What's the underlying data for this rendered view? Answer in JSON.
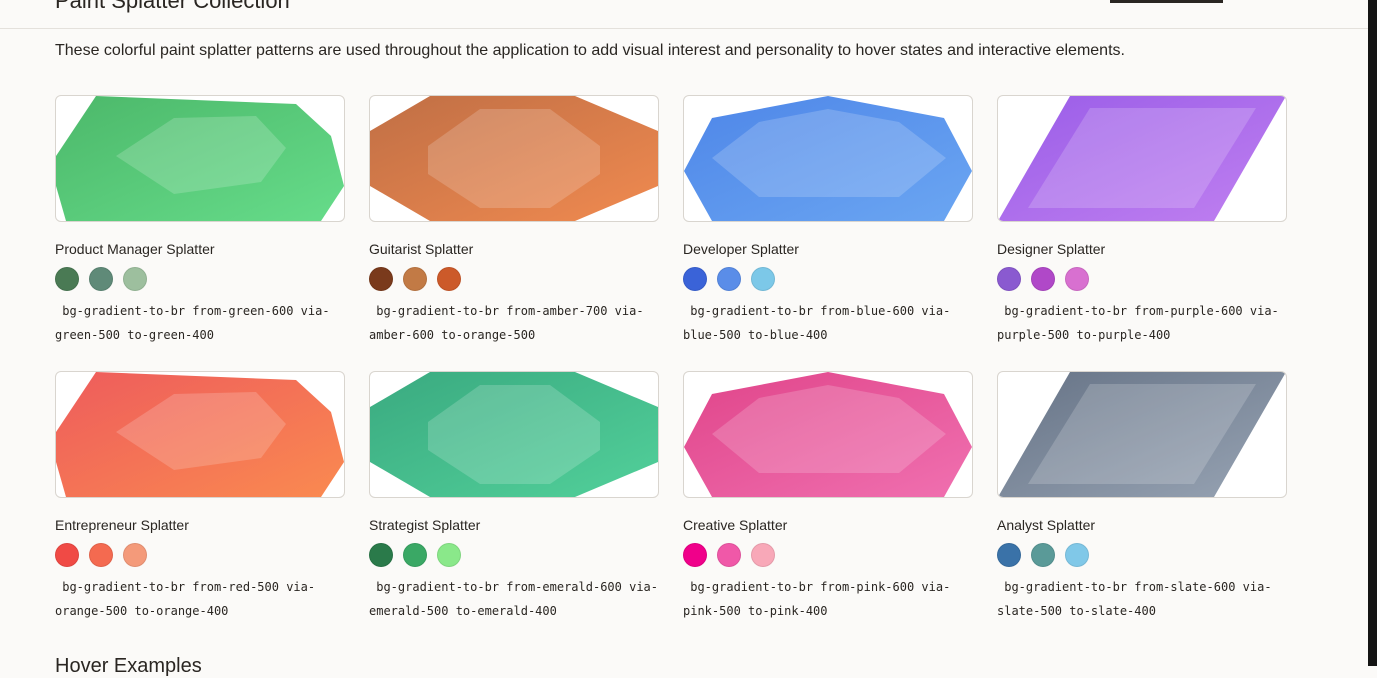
{
  "header": {
    "title": "Paint Splatter Collection",
    "active_tab": ""
  },
  "intro": "These colorful paint splatter patterns are used throughout the application to add visual interest and personality to hover states and interactive elements.",
  "splatters": [
    {
      "name": "Product Manager Splatter",
      "shape": "irregular",
      "colors": [
        "#4a7a54",
        "#5f8a78",
        "#9dbf9e"
      ],
      "grad": [
        "#4cb86a",
        "#66dc8a"
      ],
      "classes": " bg-gradient-to-br from-green-600 via-green-500 to-green-400"
    },
    {
      "name": "Guitarist Splatter",
      "shape": "octagon",
      "colors": [
        "#7a3a1c",
        "#c27a45",
        "#cc5a2a"
      ],
      "grad": [
        "#c06f45",
        "#f08a50"
      ],
      "classes": " bg-gradient-to-br from-amber-700 via-amber-600 to-orange-500"
    },
    {
      "name": "Developer Splatter",
      "shape": "hexagon",
      "colors": [
        "#3a63d8",
        "#5a8de8",
        "#7cc8e8"
      ],
      "grad": [
        "#4e86e8",
        "#6ba6f2"
      ],
      "classes": " bg-gradient-to-br from-blue-600 via-blue-500 to-blue-400"
    },
    {
      "name": "Designer Splatter",
      "shape": "parallelogram",
      "colors": [
        "#8a5ad0",
        "#b048c8",
        "#d870d0"
      ],
      "grad": [
        "#9a5de8",
        "#c080f0"
      ],
      "classes": " bg-gradient-to-br from-purple-600 via-purple-500 to-purple-400"
    },
    {
      "name": "Entrepreneur Splatter",
      "shape": "irregular",
      "colors": [
        "#f04a45",
        "#f46a50",
        "#f49a7a"
      ],
      "grad": [
        "#ee5c5c",
        "#fa8a50"
      ],
      "classes": " bg-gradient-to-br from-red-500 via-orange-500 to-orange-400"
    },
    {
      "name": "Strategist Splatter",
      "shape": "octagon",
      "colors": [
        "#2a7a4a",
        "#3aa865",
        "#8ae88a"
      ],
      "grad": [
        "#3aaa80",
        "#52d09a"
      ],
      "classes": " bg-gradient-to-br from-emerald-600 via-emerald-500 to-emerald-400"
    },
    {
      "name": "Creative Splatter",
      "shape": "hexagon",
      "colors": [
        "#f0008a",
        "#f058a8",
        "#f8a8b8"
      ],
      "grad": [
        "#e0458a",
        "#f070b0"
      ],
      "classes": " bg-gradient-to-br from-pink-600 via-pink-500 to-pink-400"
    },
    {
      "name": "Analyst Splatter",
      "shape": "parallelogram",
      "colors": [
        "#3a72a8",
        "#5a9a98",
        "#80c8e8"
      ],
      "grad": [
        "#667386",
        "#98a4b4"
      ],
      "classes": " bg-gradient-to-br from-slate-600 via-slate-500 to-slate-400"
    }
  ],
  "next_section": "Hover Examples"
}
